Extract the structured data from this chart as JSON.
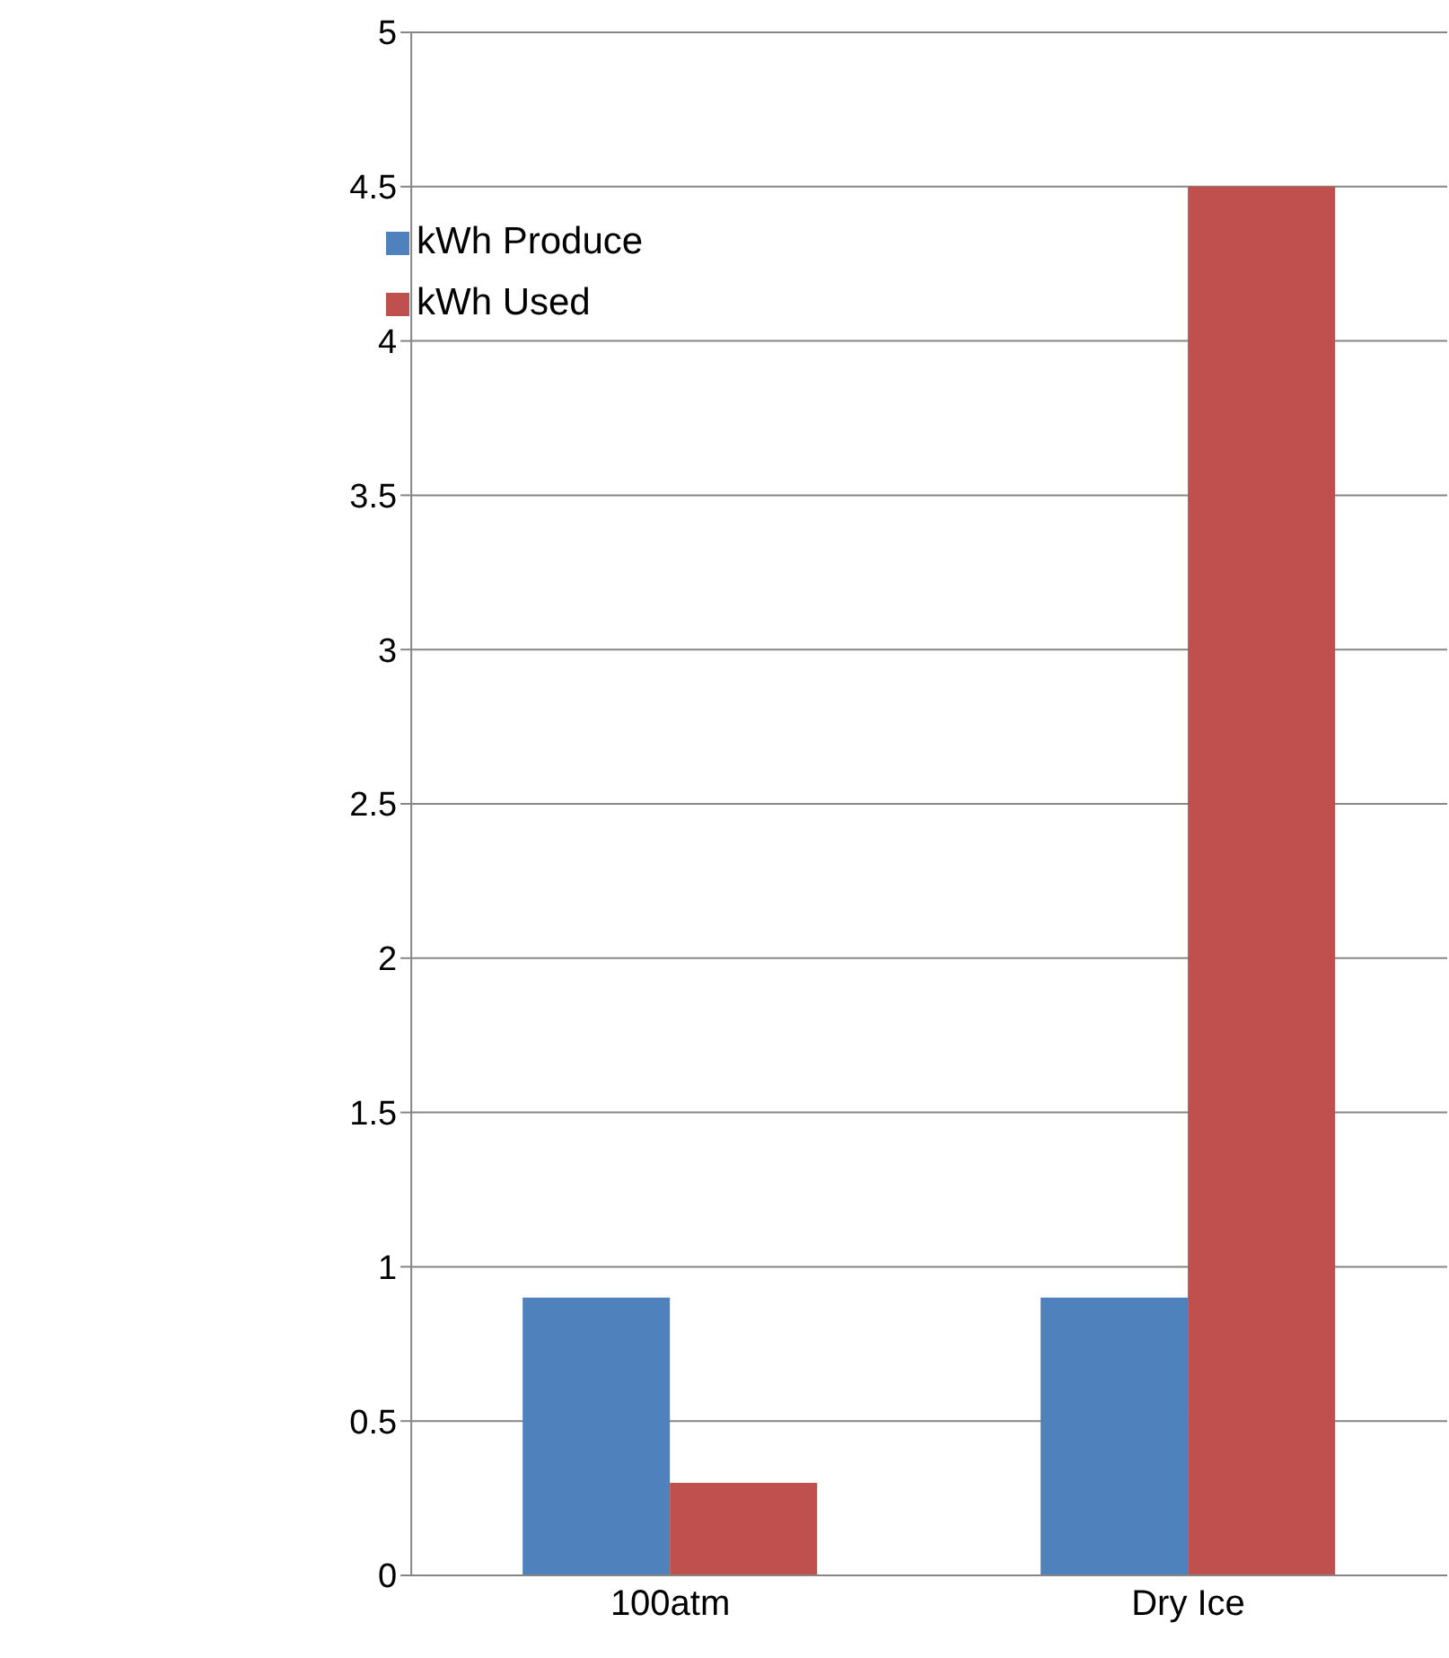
{
  "chart_data": {
    "type": "bar",
    "categories": [
      "100atm",
      "Dry Ice"
    ],
    "series": [
      {
        "name": "kWh Produce",
        "color": "#4f81bd",
        "values": [
          0.9,
          0.9
        ]
      },
      {
        "name": "kWh Used",
        "color": "#c0504d",
        "values": [
          0.3,
          4.5
        ]
      }
    ],
    "ylim": [
      0,
      5
    ],
    "yticks": [
      0,
      0.5,
      1,
      1.5,
      2,
      2.5,
      3,
      3.5,
      4,
      4.5,
      5
    ],
    "grid": "y",
    "legend": "top left"
  }
}
